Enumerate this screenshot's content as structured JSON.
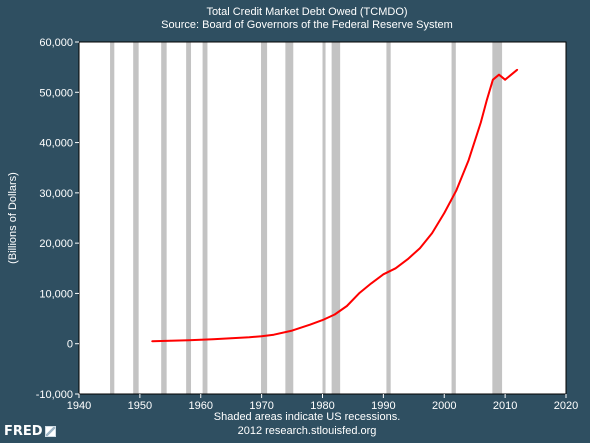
{
  "chart_data": {
    "type": "line",
    "title": "Total Credit Market Debt Owed (TCMDO)",
    "subtitle": "Source: Board of Governors of the Federal Reserve System",
    "ylabel": "(Billions of Dollars)",
    "xlabel": "",
    "xlim": [
      1940,
      2020
    ],
    "ylim": [
      -10000,
      60000
    ],
    "x_ticks": [
      1940,
      1950,
      1960,
      1970,
      1980,
      1990,
      2000,
      2010,
      2020
    ],
    "x_tick_labels": [
      "1940",
      "1950",
      "1960",
      "1970",
      "1980",
      "1990",
      "2000",
      "2010",
      "2020"
    ],
    "y_ticks": [
      -10000,
      0,
      10000,
      20000,
      30000,
      40000,
      50000,
      60000
    ],
    "y_tick_labels": [
      "-10,000",
      "0",
      "10,000",
      "20,000",
      "30,000",
      "40,000",
      "50,000",
      "60,000"
    ],
    "grid": false,
    "recessions": [
      [
        1945.1,
        1945.8
      ],
      [
        1948.9,
        1949.8
      ],
      [
        1953.5,
        1954.4
      ],
      [
        1957.6,
        1958.4
      ],
      [
        1960.3,
        1961.1
      ],
      [
        1969.9,
        1970.9
      ],
      [
        1973.9,
        1975.2
      ],
      [
        1980.0,
        1980.5
      ],
      [
        1981.5,
        1982.9
      ],
      [
        1990.5,
        1991.2
      ],
      [
        2001.2,
        2001.9
      ],
      [
        2007.9,
        2009.5
      ]
    ],
    "series": [
      {
        "color": "#ff0000",
        "x": [
          1952,
          1955,
          1958,
          1960,
          1962,
          1965,
          1968,
          1970,
          1972,
          1975,
          1978,
          1980,
          1982,
          1984,
          1986,
          1988,
          1990,
          1992,
          1994,
          1996,
          1998,
          2000,
          2002,
          2004,
          2006,
          2007,
          2008,
          2009,
          2010,
          2011,
          2012
        ],
        "y": [
          500,
          600,
          700,
          800,
          900,
          1100,
          1300,
          1500,
          1800,
          2600,
          3800,
          4700,
          5800,
          7500,
          10000,
          12000,
          13800,
          15000,
          16800,
          19000,
          22000,
          26000,
          30500,
          36500,
          44000,
          48500,
          52500,
          53500,
          52500,
          53500,
          54500
        ]
      }
    ],
    "note_lines": [
      "Shaded areas indicate US recessions.",
      "2012 research.stlouisfed.org"
    ],
    "colors": {
      "background": "#2f4f61",
      "plot_area": "#ffffff",
      "recession": "#c3c3c3",
      "line": "#ff0000"
    }
  },
  "branding": {
    "logo_text": "FRED",
    "logo_icon": "fred-graph-icon"
  }
}
